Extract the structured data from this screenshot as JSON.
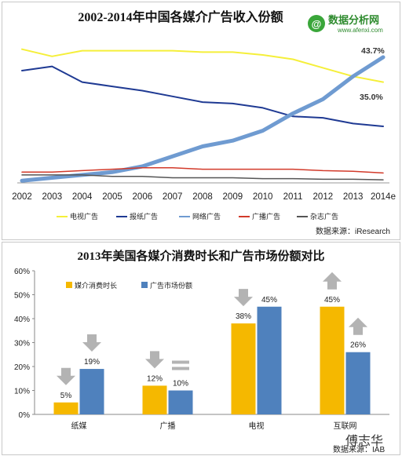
{
  "watermark": {
    "brand": "数据分析网",
    "domain": "www.afenxi.com",
    "author": "傅志华"
  },
  "chart_data": [
    {
      "type": "line",
      "title": "2002-2014年中国各媒介广告收入份额",
      "x": [
        "2002",
        "2003",
        "2004",
        "2005",
        "2006",
        "2007",
        "2008",
        "2009",
        "2010",
        "2011",
        "2012",
        "2013",
        "2014e"
      ],
      "series": [
        {
          "name": "电视广告",
          "color": "#f5ef3a",
          "width": 2,
          "values": [
            46.5,
            44.0,
            46.0,
            46.0,
            46.0,
            46.0,
            45.5,
            45.5,
            44.5,
            43.0,
            40.0,
            37.0,
            35.0
          ]
        },
        {
          "name": "报纸广告",
          "color": "#1f3a93",
          "width": 2,
          "values": [
            39.0,
            40.5,
            35.0,
            33.5,
            32.0,
            30.0,
            28.0,
            27.5,
            26.0,
            23.0,
            22.5,
            20.5,
            19.5
          ]
        },
        {
          "name": "网络广告",
          "color": "#6f9bd1",
          "width": 5,
          "values": [
            0.5,
            1.5,
            2.5,
            3.5,
            5.5,
            9.0,
            12.5,
            14.5,
            18.0,
            24.0,
            29.0,
            37.0,
            43.7
          ]
        },
        {
          "name": "广播广告",
          "color": "#d23a2a",
          "width": 1.5,
          "values": [
            3.5,
            3.5,
            4.0,
            4.5,
            5.0,
            5.0,
            4.5,
            4.5,
            4.5,
            4.5,
            4.0,
            3.8,
            3.2
          ]
        },
        {
          "name": "杂志广告",
          "color": "#555555",
          "width": 1.5,
          "values": [
            2.5,
            2.5,
            2.5,
            2.0,
            2.0,
            1.5,
            1.5,
            1.5,
            1.2,
            1.2,
            1.0,
            1.0,
            0.8
          ]
        }
      ],
      "ylim": [
        0,
        50
      ],
      "annotations": [
        "43.7%",
        "35.0%"
      ],
      "source": "数据来源：iResearch",
      "legend_position": "bottom"
    },
    {
      "type": "bar",
      "title": "2013年美国各媒介消费时长和广告市场份额对比",
      "categories": [
        "纸媒",
        "广播",
        "电视",
        "互联网"
      ],
      "series": [
        {
          "name": "媒介消费时长",
          "color": "#f5b800",
          "values": [
            5,
            12,
            38,
            45
          ]
        },
        {
          "name": "广告市场份额",
          "color": "#4f81bd",
          "values": [
            19,
            10,
            45,
            26
          ]
        }
      ],
      "data_labels": [
        [
          "5%",
          "19%"
        ],
        [
          "12%",
          "10%"
        ],
        [
          "38%",
          "45%"
        ],
        [
          "45%",
          "26%"
        ]
      ],
      "y_ticks": [
        "0%",
        "10%",
        "20%",
        "30%",
        "40%",
        "50%",
        "60%"
      ],
      "ylim": [
        0,
        60
      ],
      "legend_position": "top-left",
      "source": "数据来源：IAB"
    }
  ]
}
